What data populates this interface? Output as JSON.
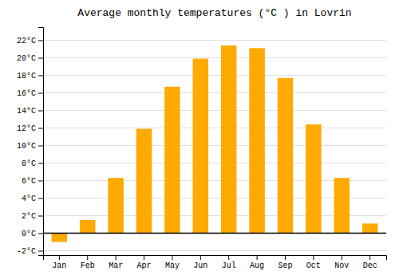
{
  "chart_data": {
    "type": "bar",
    "title": "Average monthly temperatures (°C ) in Lovrin",
    "categories": [
      "Jan",
      "Feb",
      "Mar",
      "Apr",
      "May",
      "Jun",
      "Jul",
      "Aug",
      "Sep",
      "Oct",
      "Nov",
      "Dec"
    ],
    "values": [
      -1.0,
      1.5,
      6.3,
      11.9,
      16.7,
      19.9,
      21.4,
      21.1,
      17.7,
      12.4,
      6.3,
      1.1
    ],
    "color": "#FFAA00",
    "ylim": [
      -2.5,
      23.5
    ],
    "yticks": [
      {
        "value": -2,
        "label": "-2°C"
      },
      {
        "value": 0,
        "label": "0°C"
      },
      {
        "value": 2,
        "label": "2°C"
      },
      {
        "value": 4,
        "label": "4°C"
      },
      {
        "value": 6,
        "label": "6°C"
      },
      {
        "value": 8,
        "label": "8°C"
      },
      {
        "value": 10,
        "label": "10°C"
      },
      {
        "value": 12,
        "label": "12°C"
      },
      {
        "value": 14,
        "label": "14°C"
      },
      {
        "value": 16,
        "label": "16°C"
      },
      {
        "value": 18,
        "label": "18°C"
      },
      {
        "value": 20,
        "label": "20°C"
      },
      {
        "value": 22,
        "label": "22°C"
      }
    ],
    "grid": true
  }
}
